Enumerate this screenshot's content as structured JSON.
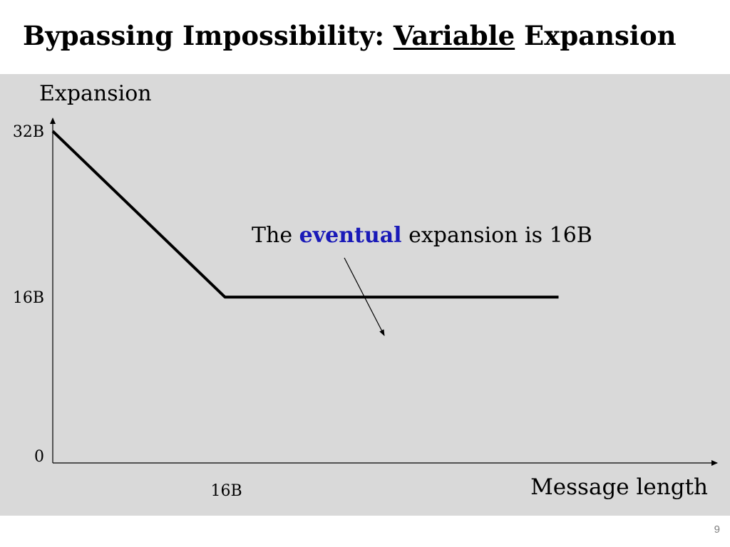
{
  "slide": {
    "title_before": "Bypassing Impossibility: ",
    "title_underlined": "Variable",
    "title_after": " Expansion",
    "page_number": "9"
  },
  "annotation": {
    "before": "The ",
    "emphasis": "eventual",
    "after": " expansion is 16B",
    "emphasis_color": "#1a1ab8"
  },
  "chart_data": {
    "type": "line",
    "title": "",
    "xlabel": "Message length",
    "ylabel": "Expansion",
    "x": [
      0,
      16,
      47
    ],
    "series": [
      {
        "values": [
          32,
          16,
          16
        ],
        "color": "#000000"
      }
    ],
    "xlim": [
      0,
      62
    ],
    "ylim": [
      0,
      36
    ],
    "x_ticks": [
      {
        "value": 16,
        "label": "16B"
      }
    ],
    "y_ticks": [
      {
        "value": 0,
        "label": "0"
      },
      {
        "value": 16,
        "label": "16B"
      },
      {
        "value": 32,
        "label": "32B"
      }
    ],
    "grid": false,
    "legend": "none",
    "panel_color": "#d9d9d9"
  }
}
